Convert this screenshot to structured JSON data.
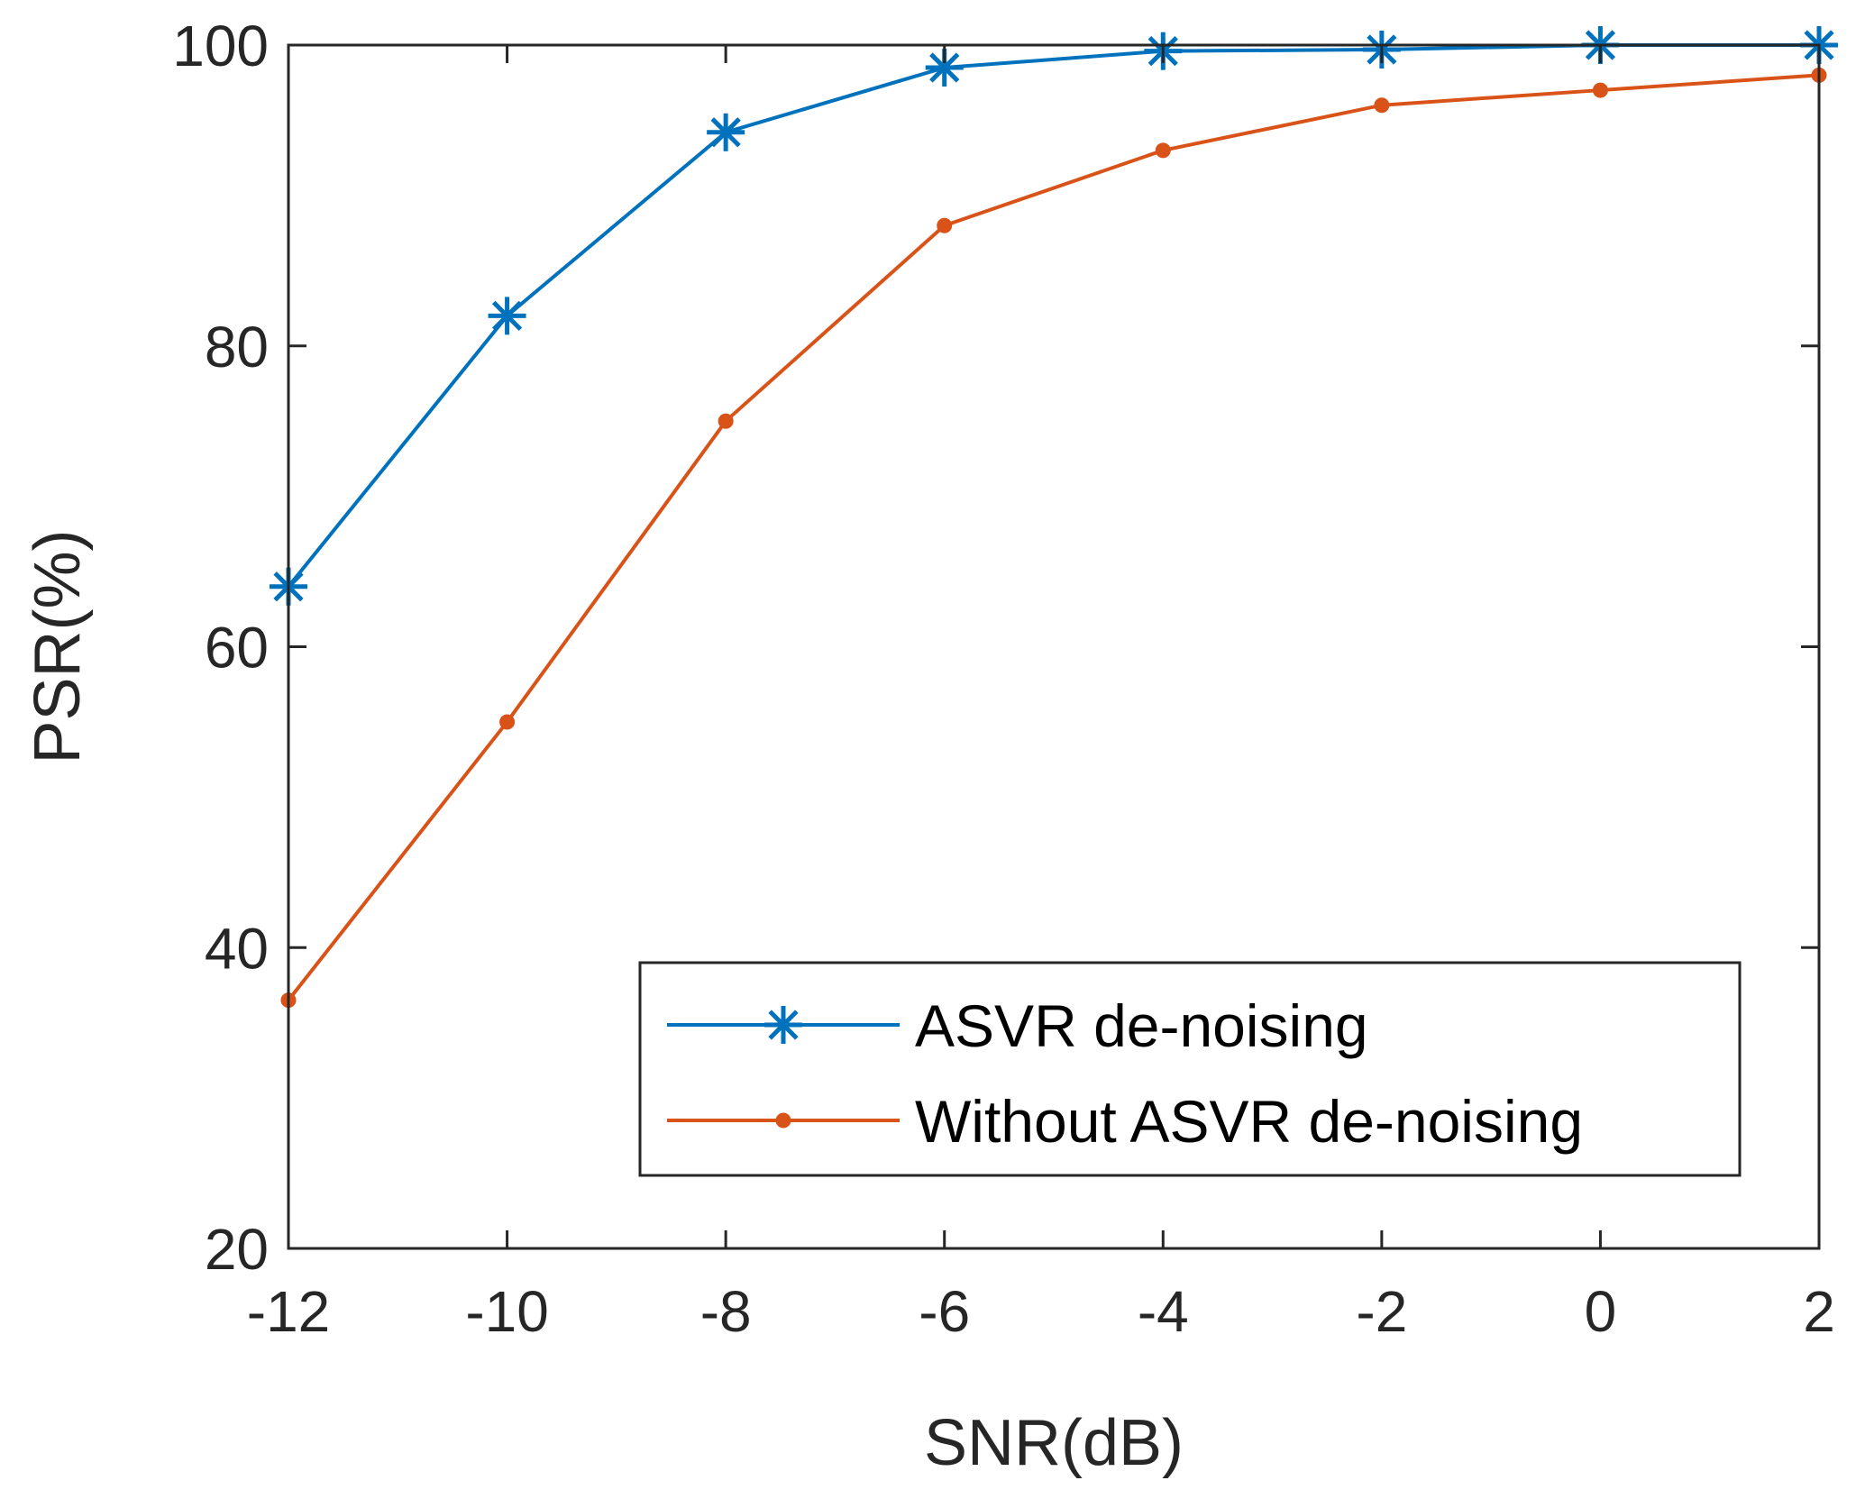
{
  "chart_data": {
    "type": "line",
    "title": "",
    "xlabel": "SNR(dB)",
    "ylabel": "PSR(%)",
    "xlim": [
      -12,
      2
    ],
    "ylim": [
      20,
      100
    ],
    "xticks": [
      -12,
      -10,
      -8,
      -6,
      -4,
      -2,
      0,
      2
    ],
    "yticks": [
      20,
      40,
      60,
      80,
      100
    ],
    "grid": false,
    "legend_position": "bottom-right",
    "x": [
      -12,
      -10,
      -8,
      -6,
      -4,
      -2,
      0,
      2
    ],
    "series": [
      {
        "name": "ASVR de-noising",
        "values": [
          64,
          82,
          94.2,
          98.5,
          99.6,
          99.7,
          100,
          100
        ],
        "color": "#0072BD",
        "marker": "asterisk"
      },
      {
        "name": "Without ASVR de-noising",
        "values": [
          36.5,
          55,
          75,
          88,
          93,
          96,
          97,
          98
        ],
        "color": "#D95319",
        "marker": "dot"
      }
    ]
  }
}
